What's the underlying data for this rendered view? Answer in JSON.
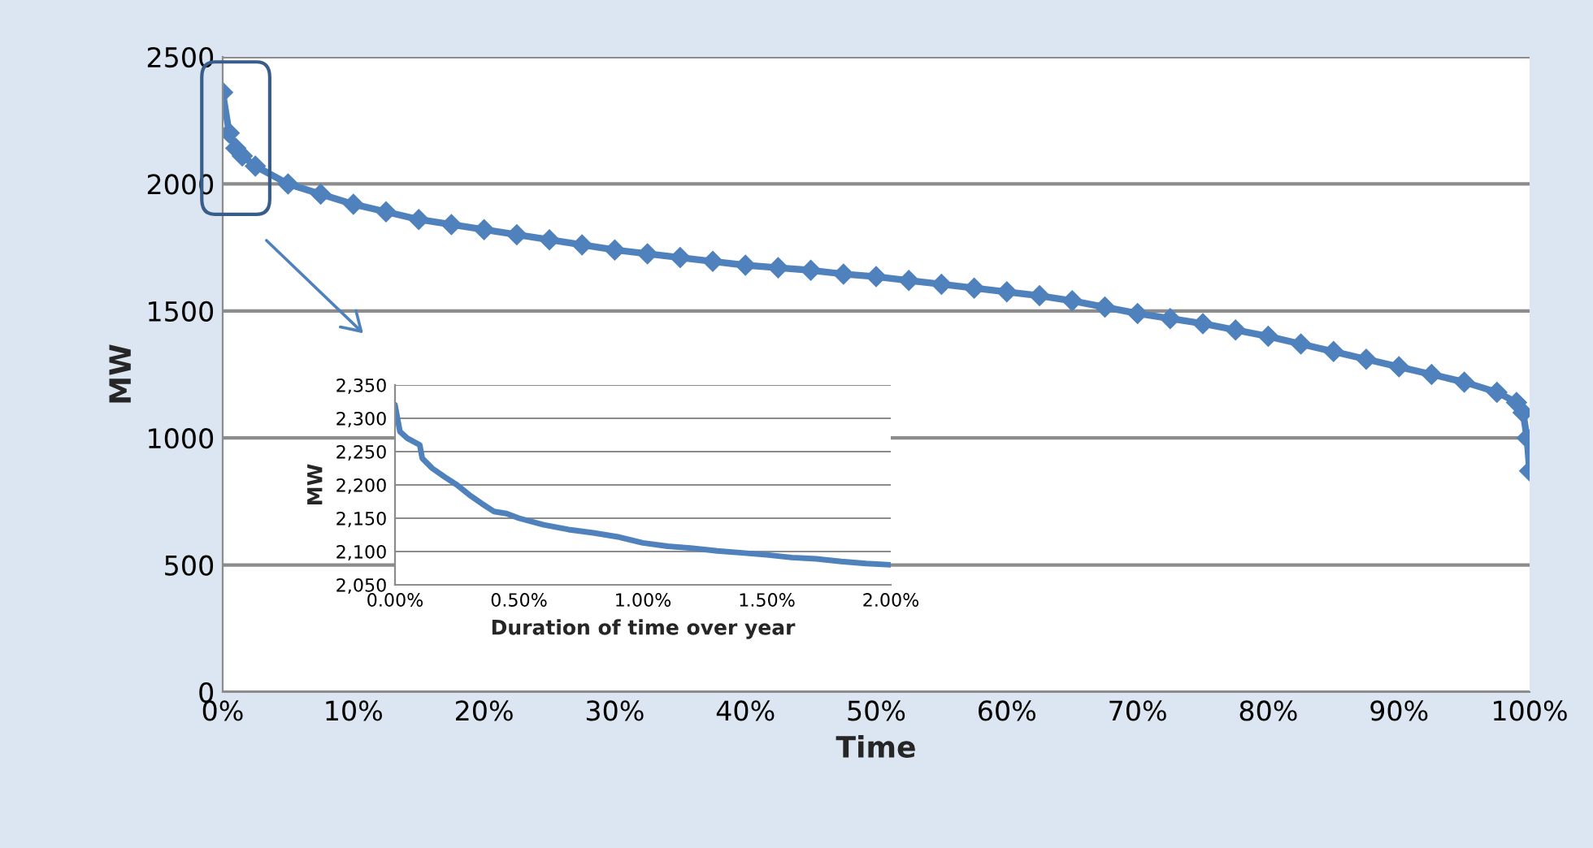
{
  "chart_data": [
    {
      "type": "line",
      "xlabel": "Time",
      "ylabel": "MW",
      "xlim": [
        0,
        100
      ],
      "ylim": [
        0,
        2500
      ],
      "xticks": [
        {
          "value": 0,
          "label": "0%"
        },
        {
          "value": 10,
          "label": "10%"
        },
        {
          "value": 20,
          "label": "20%"
        },
        {
          "value": 30,
          "label": "30%"
        },
        {
          "value": 40,
          "label": "40%"
        },
        {
          "value": 50,
          "label": "50%"
        },
        {
          "value": 60,
          "label": "60%"
        },
        {
          "value": 70,
          "label": "70%"
        },
        {
          "value": 80,
          "label": "80%"
        },
        {
          "value": 90,
          "label": "90%"
        },
        {
          "value": 100,
          "label": "100%"
        }
      ],
      "yticks": [
        0,
        500,
        1000,
        1500,
        2000,
        2500
      ],
      "grid": "y",
      "marker": "diamond",
      "line_style": "solid",
      "legend": false,
      "series": [
        {
          "color": "#4f81bd",
          "x": [
            0,
            0.5,
            1,
            1.5,
            2.5,
            5,
            7.5,
            10,
            12.5,
            15,
            17.5,
            20,
            22.5,
            25,
            27.5,
            30,
            32.5,
            35,
            37.5,
            40,
            42.5,
            45,
            47.5,
            50,
            52.5,
            55,
            57.5,
            60,
            62.5,
            65,
            67.5,
            70,
            72.5,
            75,
            77.5,
            80,
            82.5,
            85,
            87.5,
            90,
            92.5,
            95,
            97.5,
            99,
            99.5,
            99.8,
            100
          ],
          "values": [
            2360,
            2200,
            2140,
            2110,
            2070,
            2000,
            1960,
            1920,
            1890,
            1860,
            1840,
            1820,
            1800,
            1780,
            1760,
            1740,
            1725,
            1710,
            1695,
            1680,
            1670,
            1660,
            1645,
            1635,
            1620,
            1605,
            1590,
            1575,
            1560,
            1540,
            1515,
            1490,
            1470,
            1450,
            1425,
            1400,
            1370,
            1340,
            1310,
            1280,
            1250,
            1220,
            1180,
            1140,
            1100,
            1000,
            870
          ]
        }
      ]
    },
    {
      "type": "line",
      "xlabel": "Duration of time over year",
      "ylabel": "MW",
      "xlim": [
        0,
        2
      ],
      "ylim": [
        2050,
        2350
      ],
      "xticks": [
        {
          "value": 0,
          "label": "0.00%"
        },
        {
          "value": 0.5,
          "label": "0.50%"
        },
        {
          "value": 1,
          "label": "1.00%"
        },
        {
          "value": 1.5,
          "label": "1.50%"
        },
        {
          "value": 2,
          "label": "2.00%"
        }
      ],
      "yticks": [
        {
          "value": 2050,
          "label": "2,050"
        },
        {
          "value": 2100,
          "label": "2,100"
        },
        {
          "value": 2150,
          "label": "2,150"
        },
        {
          "value": 2200,
          "label": "2,200"
        },
        {
          "value": 2250,
          "label": "2,250"
        },
        {
          "value": 2300,
          "label": "2,300"
        },
        {
          "value": 2350,
          "label": "2,350"
        }
      ],
      "grid": "y",
      "marker": "none",
      "line_style": "solid",
      "legend": false,
      "series": [
        {
          "color": "#4f81bd",
          "x": [
            0,
            0.01,
            0.02,
            0.05,
            0.1,
            0.11,
            0.15,
            0.2,
            0.25,
            0.3,
            0.35,
            0.4,
            0.45,
            0.5,
            0.6,
            0.7,
            0.8,
            0.9,
            1.0,
            1.1,
            1.2,
            1.3,
            1.4,
            1.5,
            1.6,
            1.7,
            1.8,
            1.9,
            2.0
          ],
          "values": [
            2320,
            2300,
            2280,
            2270,
            2260,
            2240,
            2225,
            2212,
            2200,
            2185,
            2172,
            2160,
            2157,
            2150,
            2140,
            2133,
            2128,
            2122,
            2113,
            2108,
            2105,
            2101,
            2098,
            2095,
            2091,
            2089,
            2085,
            2082,
            2080
          ]
        }
      ]
    }
  ]
}
